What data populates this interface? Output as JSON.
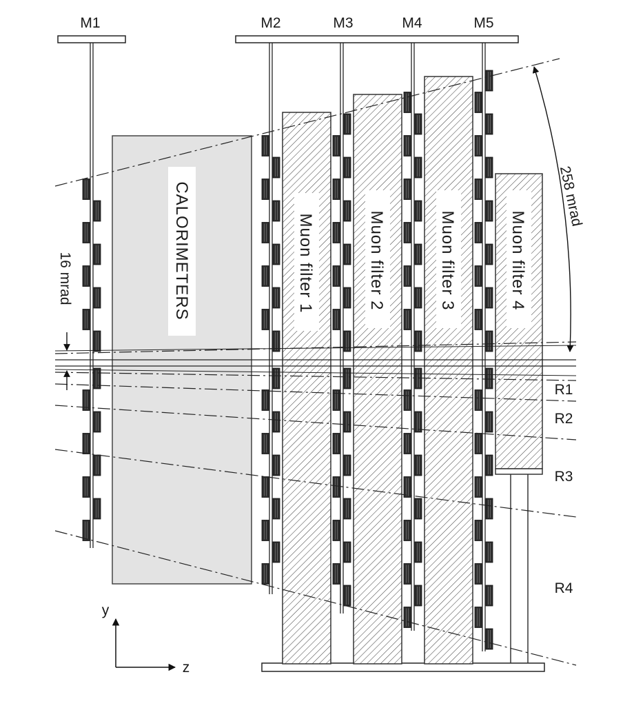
{
  "stations": [
    "M1",
    "M2",
    "M3",
    "M4",
    "M5"
  ],
  "calorimeters_label": "CALORIMETERS",
  "filters": [
    "Muon filter 1",
    "Muon filter 2",
    "Muon filter 3",
    "Muon filter 4"
  ],
  "regions": [
    "R1",
    "R2",
    "R3",
    "R4"
  ],
  "angles": {
    "outer": "258 mrad",
    "inner": "16 mrad"
  },
  "axes": {
    "y": "y",
    "z": "z"
  }
}
